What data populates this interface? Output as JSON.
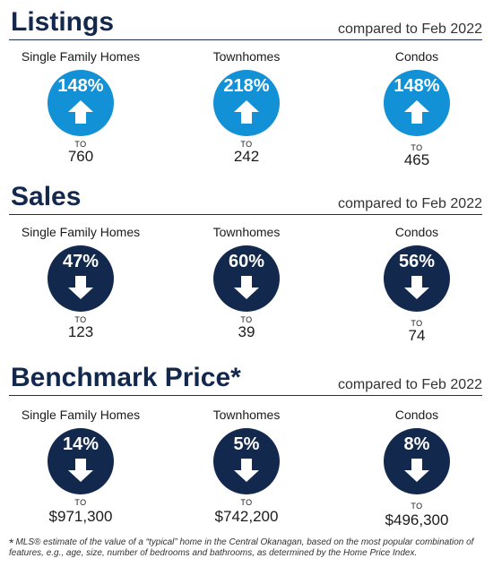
{
  "sections": [
    {
      "title": "Listings",
      "compare": "compared to Feb 2022",
      "direction": "up",
      "items": [
        {
          "label": "Single Family Homes",
          "pct": "148%",
          "to": "TO",
          "value": "760"
        },
        {
          "label": "Townhomes",
          "pct": "218%",
          "to": "TO",
          "value": "242"
        },
        {
          "label": "Condos",
          "pct": "148%",
          "to": "TO",
          "value": "465"
        }
      ]
    },
    {
      "title": "Sales",
      "compare": "compared to Feb 2022",
      "direction": "down",
      "items": [
        {
          "label": "Single Family Homes",
          "pct": "47%",
          "to": "TO",
          "value": "123"
        },
        {
          "label": "Townhomes",
          "pct": "60%",
          "to": "TO",
          "value": "39"
        },
        {
          "label": "Condos",
          "pct": "56%",
          "to": "TO",
          "value": "74"
        }
      ]
    },
    {
      "title": "Benchmark Price*",
      "compare": "compared to Feb 2022",
      "direction": "down",
      "items": [
        {
          "label": "Single Family Homes",
          "pct": "14%",
          "to": "TO",
          "value": "$971,300"
        },
        {
          "label": "Townhomes",
          "pct": "5%",
          "to": "TO",
          "value": "$742,200"
        },
        {
          "label": "Condos",
          "pct": "8%",
          "to": "TO",
          "value": "$496,300"
        }
      ]
    }
  ],
  "colors": {
    "up": "#1391d7",
    "down": "#13284d",
    "heading": "#13284d"
  },
  "footnote": {
    "star": "*",
    "text": "MLS® estimate of the value of a “typical” home in the Central Okanagan, based on the most popular combination of features, e.g., age, size, number of bedrooms and bathrooms, as determined by the Home Price Index."
  }
}
